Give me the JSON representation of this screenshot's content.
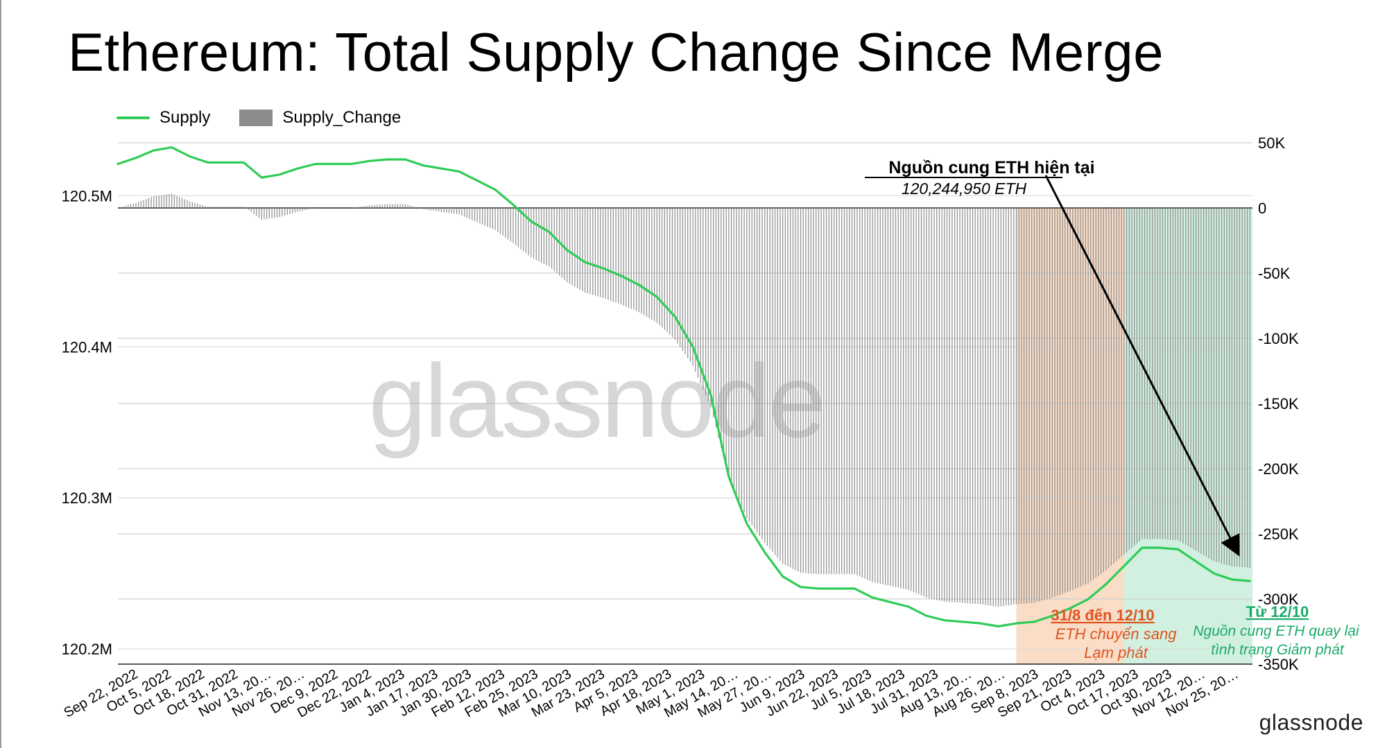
{
  "title": "Ethereum: Total Supply Change Since Merge",
  "legend": {
    "line_label": "Supply",
    "bar_label": "Supply_Change"
  },
  "watermark": "glassnode",
  "brand": "glassnode",
  "colors": {
    "line": "#2ecc55",
    "bar": "#8c8c8c",
    "inflation_zone": "#f7d2b4",
    "deflation_zone": "#c6ecd7",
    "arrow": "#000000"
  },
  "annotations": {
    "current_supply": {
      "heading": "Nguồn cung ETH hiện tại",
      "value": "120,244,950 ETH"
    },
    "inflation": {
      "heading": "31/8 đến 12/10",
      "line1": "ETH chuyển sang",
      "line2": "Lạm phát"
    },
    "deflation": {
      "heading": "Từ 12/10",
      "line1": "Nguồn cung ETH quay lại",
      "line2": "tình trạng Giảm phát"
    }
  },
  "chart_data": {
    "type": "line",
    "title": "Ethereum: Total Supply Change Since Merge",
    "x_tick_labels": [
      "Sep 22, 2022",
      "Oct 5, 2022",
      "Oct 18, 2022",
      "Oct 31, 2022",
      "Nov 13, 20…",
      "Nov 26, 20…",
      "Dec 9, 2022",
      "Dec 22, 2022",
      "Jan 4, 2023",
      "Jan 17, 2023",
      "Jan 30, 2023",
      "Feb 12, 2023",
      "Feb 25, 2023",
      "Mar 10, 2023",
      "Mar 23, 2023",
      "Apr 5, 2023",
      "Apr 18, 2023",
      "May 1, 2023",
      "May 14, 20…",
      "May 27, 20…",
      "Jun 9, 2023",
      "Jun 22, 2023",
      "Jul 5, 2023",
      "Jul 18, 2023",
      "Jul 31, 2023",
      "Aug 13, 20…",
      "Aug 26, 20…",
      "Sep 8, 2023",
      "Sep 21, 2023",
      "Oct 4, 2023",
      "Oct 17, 2023",
      "Oct 30, 2023",
      "Nov 12, 20…",
      "Nov 25, 20…"
    ],
    "y_left": {
      "ticks": [
        "120.5M",
        "120.4M",
        "120.3M",
        "120.2M"
      ],
      "tick_values": [
        120500000,
        120400000,
        120300000,
        120200000
      ],
      "range": [
        120190000,
        120535000
      ]
    },
    "y_right": {
      "ticks": [
        "50K",
        "0",
        "-50K",
        "-100K",
        "-150K",
        "-200K",
        "-250K",
        "-300K",
        "-350K"
      ],
      "tick_values": [
        50000,
        0,
        -50000,
        -100000,
        -150000,
        -200000,
        -250000,
        -300000,
        -350000
      ],
      "range": [
        -350000,
        50000
      ]
    },
    "grid": true,
    "legend_position": "top-left",
    "series": [
      {
        "name": "Supply",
        "axis": "left",
        "x": [
          "2022-09-15",
          "2022-09-22",
          "2022-09-29",
          "2022-10-06",
          "2022-10-13",
          "2022-10-20",
          "2022-10-27",
          "2022-11-03",
          "2022-11-10",
          "2022-11-17",
          "2022-11-24",
          "2022-12-01",
          "2022-12-08",
          "2022-12-15",
          "2022-12-22",
          "2022-12-29",
          "2023-01-05",
          "2023-01-12",
          "2023-01-19",
          "2023-01-26",
          "2023-02-02",
          "2023-02-09",
          "2023-02-16",
          "2023-02-23",
          "2023-03-02",
          "2023-03-09",
          "2023-03-16",
          "2023-03-23",
          "2023-03-30",
          "2023-04-06",
          "2023-04-13",
          "2023-04-20",
          "2023-04-27",
          "2023-05-04",
          "2023-05-11",
          "2023-05-18",
          "2023-05-25",
          "2023-06-01",
          "2023-06-08",
          "2023-06-15",
          "2023-06-22",
          "2023-06-29",
          "2023-07-06",
          "2023-07-13",
          "2023-07-20",
          "2023-07-27",
          "2023-08-03",
          "2023-08-10",
          "2023-08-17",
          "2023-08-24",
          "2023-08-31",
          "2023-09-07",
          "2023-09-14",
          "2023-09-21",
          "2023-09-28",
          "2023-10-05",
          "2023-10-12",
          "2023-10-19",
          "2023-10-26",
          "2023-11-02",
          "2023-11-09",
          "2023-11-16",
          "2023-11-23",
          "2023-11-30"
        ],
        "values": [
          120521000,
          120525000,
          120530000,
          120532000,
          120526000,
          120522000,
          120522000,
          120522000,
          120512000,
          120514000,
          120518000,
          120521000,
          120521000,
          120521000,
          120523000,
          120524000,
          120524000,
          120520000,
          120518000,
          120516000,
          120510000,
          120504000,
          120494000,
          120483000,
          120476000,
          120464000,
          120456000,
          120452000,
          120447000,
          120441000,
          120433000,
          120420000,
          120400000,
          120368000,
          120314000,
          120283000,
          120264000,
          120248000,
          120241000,
          120240000,
          120240000,
          120240000,
          120234000,
          120231000,
          120228000,
          120222000,
          120219000,
          120218000,
          120217000,
          120215000,
          120217000,
          120218000,
          120222000,
          120227000,
          120233000,
          120243000,
          120255000,
          120267000,
          120267000,
          120266000,
          120258000,
          120250000,
          120246000,
          120245000
        ]
      },
      {
        "name": "Supply_Change",
        "axis": "right",
        "x": [
          "2022-09-15",
          "2022-09-22",
          "2022-09-29",
          "2022-10-06",
          "2022-10-13",
          "2022-10-20",
          "2022-10-27",
          "2022-11-03",
          "2022-11-10",
          "2022-11-17",
          "2022-11-24",
          "2022-12-01",
          "2022-12-08",
          "2022-12-15",
          "2022-12-22",
          "2022-12-29",
          "2023-01-05",
          "2023-01-12",
          "2023-01-19",
          "2023-01-26",
          "2023-02-02",
          "2023-02-09",
          "2023-02-16",
          "2023-02-23",
          "2023-03-02",
          "2023-03-09",
          "2023-03-16",
          "2023-03-23",
          "2023-03-30",
          "2023-04-06",
          "2023-04-13",
          "2023-04-20",
          "2023-04-27",
          "2023-05-04",
          "2023-05-11",
          "2023-05-18",
          "2023-05-25",
          "2023-06-01",
          "2023-06-08",
          "2023-06-15",
          "2023-06-22",
          "2023-06-29",
          "2023-07-06",
          "2023-07-13",
          "2023-07-20",
          "2023-07-27",
          "2023-08-03",
          "2023-08-10",
          "2023-08-17",
          "2023-08-24",
          "2023-08-31",
          "2023-09-07",
          "2023-09-14",
          "2023-09-21",
          "2023-09-28",
          "2023-10-05",
          "2023-10-12",
          "2023-10-19",
          "2023-10-26",
          "2023-11-02",
          "2023-11-09",
          "2023-11-16",
          "2023-11-23",
          "2023-11-30"
        ],
        "values": [
          0,
          4000,
          9000,
          11000,
          5000,
          1000,
          1000,
          1000,
          -9000,
          -7000,
          -3000,
          0,
          0,
          0,
          2000,
          3000,
          3000,
          -1000,
          -3000,
          -5000,
          -11000,
          -17000,
          -27000,
          -38000,
          -45000,
          -57000,
          -65000,
          -69000,
          -74000,
          -80000,
          -88000,
          -101000,
          -121000,
          -153000,
          -207000,
          -238000,
          -257000,
          -273000,
          -280000,
          -281000,
          -281000,
          -281000,
          -287000,
          -290000,
          -293000,
          -299000,
          -302000,
          -303000,
          -304000,
          -306000,
          -304000,
          -303000,
          -299000,
          -294000,
          -288000,
          -278000,
          -266000,
          -254000,
          -254000,
          -255000,
          -263000,
          -271000,
          -275000,
          -276000
        ]
      }
    ]
  }
}
